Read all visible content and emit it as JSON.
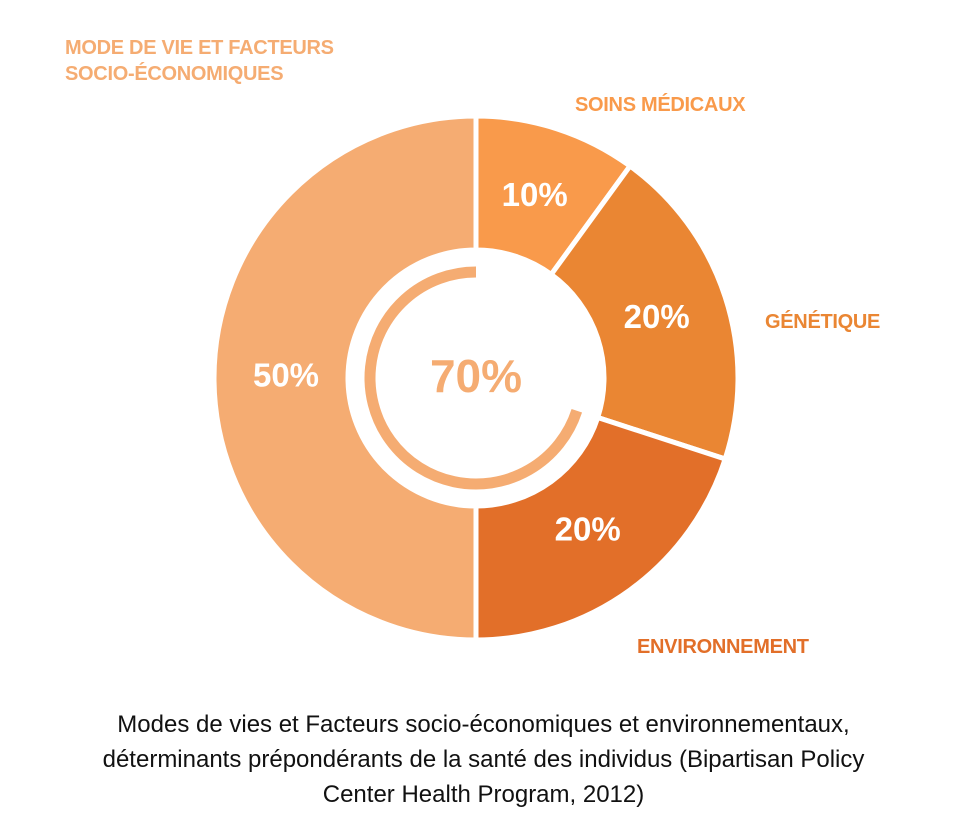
{
  "chart_data": {
    "type": "donut",
    "categories": [
      "SOINS MÉDICAUX",
      "GÉNÉTIQUE",
      "ENVIRONNEMENT",
      "MODE DE VIE ET FACTEURS SOCIO-ÉCONOMIQUES"
    ],
    "values": [
      10,
      20,
      20,
      50
    ],
    "value_labels": [
      "10%",
      "20%",
      "20%",
      "50%"
    ],
    "colors": [
      "#F99A4B",
      "#EA8633",
      "#E26F29",
      "#F5AC72"
    ],
    "center": {
      "value": 70,
      "label": "70%"
    },
    "center_color": "#F5AC72",
    "caption": "Modes de vies et Facteurs socio-économiques et environnementaux, déterminants prépondérants de la santé des individus (Bipartisan Policy Center Health Program, 2012)"
  }
}
